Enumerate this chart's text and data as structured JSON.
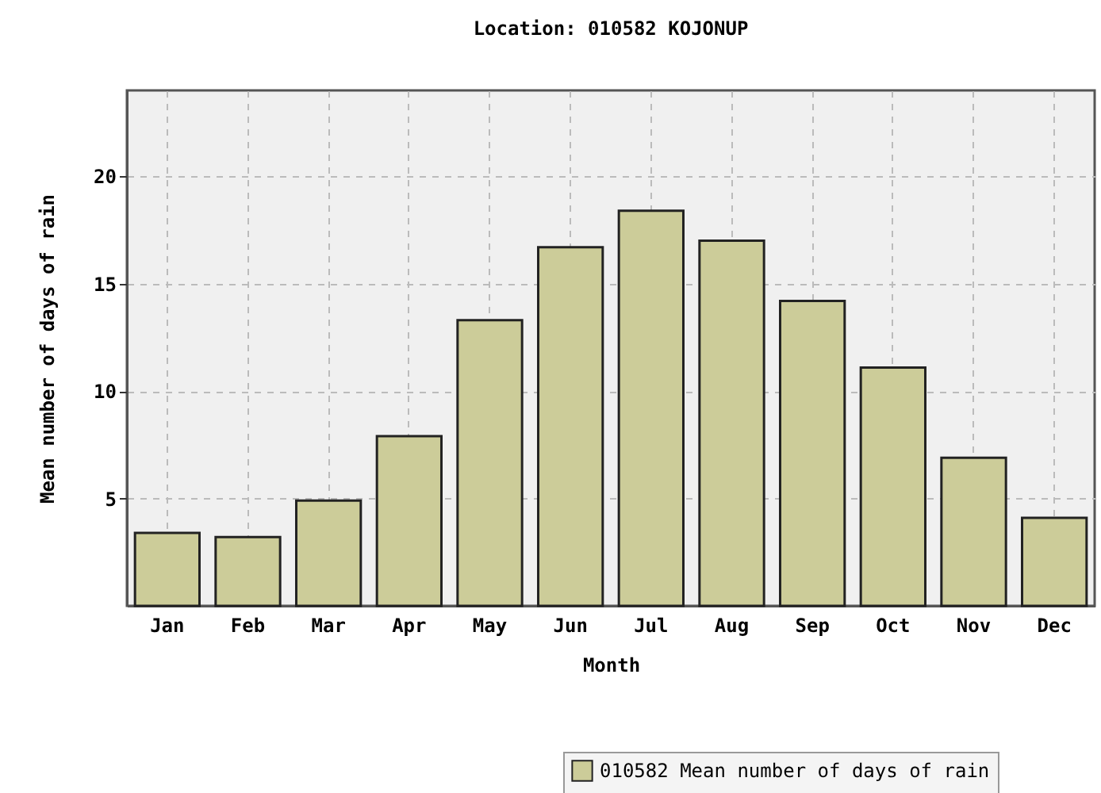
{
  "chart_data": {
    "type": "bar",
    "title": "Location: 010582 KOJONUP",
    "xlabel": "Month",
    "ylabel": "Mean number of days of rain",
    "categories": [
      "Jan",
      "Feb",
      "Mar",
      "Apr",
      "May",
      "Jun",
      "Jul",
      "Aug",
      "Sep",
      "Oct",
      "Nov",
      "Dec"
    ],
    "series": [
      {
        "name": "010582 Mean number of days of rain",
        "color": "#cccc99",
        "values": [
          3.4,
          3.2,
          4.9,
          7.9,
          13.3,
          16.7,
          18.4,
          17.0,
          14.2,
          11.1,
          6.9,
          4.1
        ]
      }
    ],
    "ylim": [
      0,
      24
    ],
    "yticks": [
      5,
      10,
      15,
      20
    ],
    "grid": true,
    "legend": "bottom right"
  }
}
